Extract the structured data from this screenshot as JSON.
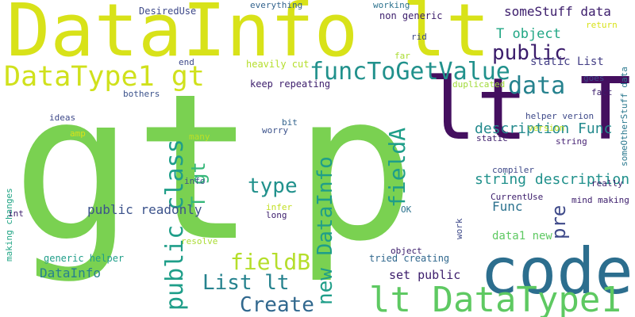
{
  "words": [
    "gt",
    "p",
    "DataInfo lt",
    "lt T",
    "code",
    "lt DataType1",
    "DataType1 gt",
    "funcToGetValue",
    "public",
    "data",
    "someStuff data",
    "T object",
    "static List",
    "public class",
    "T gt",
    "type",
    "fieldA",
    "new DataInfo",
    "fieldB",
    "List lt",
    "Create",
    "description Func",
    "string description",
    "pre",
    "public readonly",
    "Func",
    "data1 new",
    "set public",
    "DataInfo",
    "generic helper",
    "making changes",
    "int",
    "ideas",
    "amp",
    "bothers",
    "DesiredUse",
    "everything",
    "working",
    "non generic",
    "rid",
    "far",
    "return",
    "end",
    "heavily cut",
    "keep repeating",
    "duplicated",
    "goes",
    "fact",
    "helper verion",
    "version",
    "someOtherStuff data",
    "static",
    "string",
    "compiler",
    "worry",
    "bit",
    "many",
    "info",
    "infer",
    "long",
    "OK",
    "really",
    "CurrentUse",
    "mind making",
    "work",
    "resolve",
    "object",
    "tried creating"
  ]
}
